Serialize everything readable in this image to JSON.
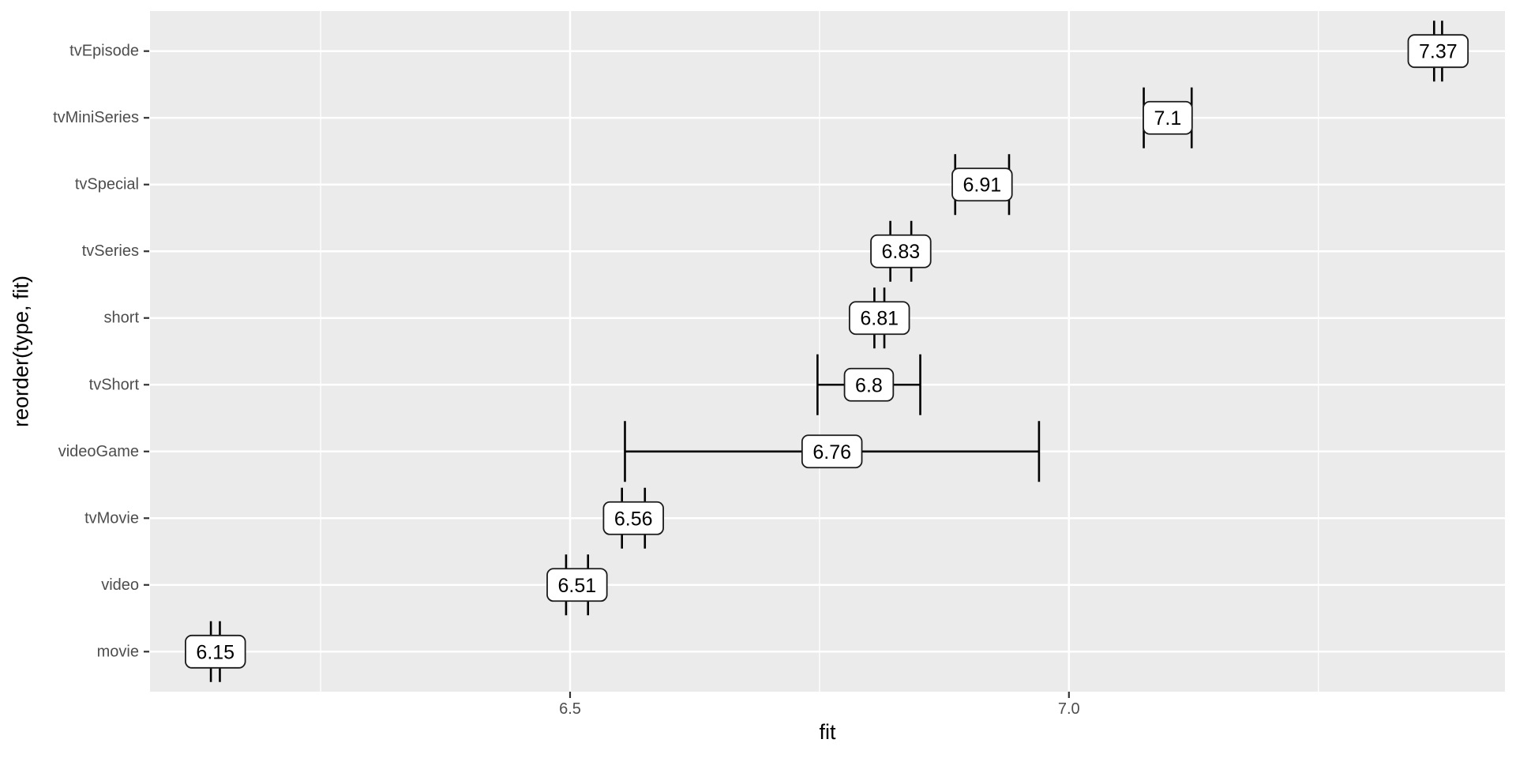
{
  "chart": {
    "colors": {
      "background": "#FFFFFF",
      "panel_bg": "#EBEBEB",
      "grid_major": "#FFFFFF",
      "grid_minor": "#FFFFFF",
      "axis_text": "#4D4D4D",
      "tick_mark": "#333333",
      "errorbar": "#000000",
      "label_fill": "#FFFFFF",
      "label_border": "#1A1A1A",
      "label_text": "#000000",
      "title_text": "#000000"
    }
  },
  "chart_data": {
    "type": "errorbar",
    "orientation": "horizontal",
    "title": "",
    "xlabel": "fit",
    "ylabel": "reorder(type, fit)",
    "grid": true,
    "legend": false,
    "xlim": [
      6.079,
      7.437
    ],
    "x_ticks": {
      "values": [
        6.5,
        7.0
      ],
      "labels": [
        "6.5",
        "7.0"
      ]
    },
    "x_minor_ticks": [
      6.25,
      6.75,
      7.25
    ],
    "rows": [
      {
        "category": "tvEpisode",
        "fit": 7.37,
        "label": "7.37",
        "lo": 7.366,
        "hi": 7.374
      },
      {
        "category": "tvMiniSeries",
        "fit": 7.1,
        "label": "7.1",
        "lo": 7.075,
        "hi": 7.123
      },
      {
        "category": "tvSpecial",
        "fit": 6.91,
        "label": "6.91",
        "lo": 6.886,
        "hi": 6.94
      },
      {
        "category": "tvSeries",
        "fit": 6.83,
        "label": "6.83",
        "lo": 6.821,
        "hi": 6.842
      },
      {
        "category": "short",
        "fit": 6.81,
        "label": "6.81",
        "lo": 6.805,
        "hi": 6.815
      },
      {
        "category": "tvShort",
        "fit": 6.8,
        "label": "6.8",
        "lo": 6.748,
        "hi": 6.851
      },
      {
        "category": "videoGame",
        "fit": 6.76,
        "label": "6.76",
        "lo": 6.555,
        "hi": 6.97
      },
      {
        "category": "tvMovie",
        "fit": 6.56,
        "label": "6.56",
        "lo": 6.552,
        "hi": 6.575
      },
      {
        "category": "video",
        "fit": 6.51,
        "label": "6.51",
        "lo": 6.496,
        "hi": 6.518
      },
      {
        "category": "movie",
        "fit": 6.15,
        "label": "6.15",
        "lo": 6.14,
        "hi": 6.149
      }
    ]
  }
}
